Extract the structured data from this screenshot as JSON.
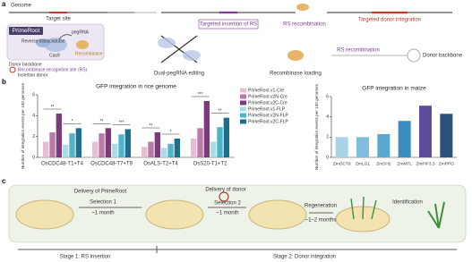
{
  "panel_a": {
    "label": "a",
    "genome": "Genome",
    "target_site": "Target site",
    "primeroot": "PrimeRoot",
    "pegrna": "pegRNA",
    "reverse_transcriptase": "Reverse transcriptase",
    "cas9": "Cas9",
    "recombinase": "Recombinase",
    "donor_backbone": "Donor backbone",
    "rs": "Recombinase recognition site (RS)",
    "insertion_donor": "Insertion donor",
    "dual_pegrna": "Dual-pegRNA editing",
    "targeted_insertion": "Targeted insertion of RS",
    "rs_recombination_1": "RS recombination",
    "recombinase_loading": "Recombinase loading",
    "targeted_integration": "Targeted  donor integration",
    "rs_recombination_2": "RS recombination",
    "donor_backbone_2": "Donor backbone"
  },
  "panel_b_label": "b",
  "chart_data": [
    {
      "type": "bar",
      "title": "GFP integration in rice genome",
      "y_label": "Number of integration events per 100 genomes",
      "categories": [
        "OsCDC48-T1+T4",
        "OsCDC48-T7+T9",
        "OsALS-T2+T4",
        "OsS20-T1+T2"
      ],
      "series": [
        {
          "name": "PrimeRoot.v1-Cre",
          "color": "#e8bcd3",
          "values": [
            1.5,
            1.5,
            1.0,
            1.8
          ]
        },
        {
          "name": "PrimeRoot.v2N-Cre",
          "color": "#b97aa8",
          "values": [
            2.4,
            2.3,
            1.5,
            2.8
          ]
        },
        {
          "name": "PrimeRoot.v2C-Cre",
          "color": "#7b3a7a",
          "values": [
            4.2,
            2.8,
            2.4,
            5.4
          ]
        },
        {
          "name": "PrimeRoot.v1-FLP",
          "color": "#aadbe8",
          "values": [
            1.2,
            1.3,
            0.9,
            1.5
          ]
        },
        {
          "name": "PrimeRoot.v2N-FLP",
          "color": "#4fb4c8",
          "values": [
            2.3,
            2.2,
            1.3,
            2.9
          ]
        },
        {
          "name": "PrimeRoot.v2C-FLP",
          "color": "#1e6f8b",
          "values": [
            2.8,
            2.7,
            1.8,
            3.8
          ]
        }
      ],
      "significance": [
        [
          "**",
          "*"
        ],
        [
          "**",
          "***"
        ],
        [
          "**",
          "*"
        ],
        [
          "***",
          "**"
        ]
      ],
      "ylim": [
        0,
        6
      ],
      "yticks": [
        0,
        2,
        4,
        6
      ]
    },
    {
      "type": "bar",
      "title": "GFP integration in maize",
      "y_label": "Number of integration events per 100 genomes",
      "categories": [
        "ZmOCT9",
        "ZmLG1",
        "ZmSH2",
        "ZmMTL",
        "ZmPIF3.3",
        "ZmPPO"
      ],
      "values": [
        2.0,
        2.0,
        2.3,
        3.6,
        5.1,
        4.3
      ],
      "colors": [
        "#a9d3e8",
        "#7fbfdd",
        "#5aa7cf",
        "#3a8dbd",
        "#5d4c9c",
        "#2d5079"
      ],
      "ylim": [
        0,
        6
      ],
      "yticks": [
        0,
        2,
        4,
        6
      ]
    }
  ],
  "panel_c": {
    "label": "c",
    "delivery_primeroot": "Delivery of PrimeRoot",
    "selection_1": "Selection 1",
    "time_1": "~1 month",
    "delivery_donor": "Delivery of donor",
    "selection_2": "Selection 2",
    "time_2": "~1 month",
    "regeneration": "Regeneration",
    "time_3": "~1–2 months",
    "identification": "Identification",
    "stage_1": "Stage 1: RS insertion",
    "stage_2": "Stage 2: Donor integration"
  }
}
